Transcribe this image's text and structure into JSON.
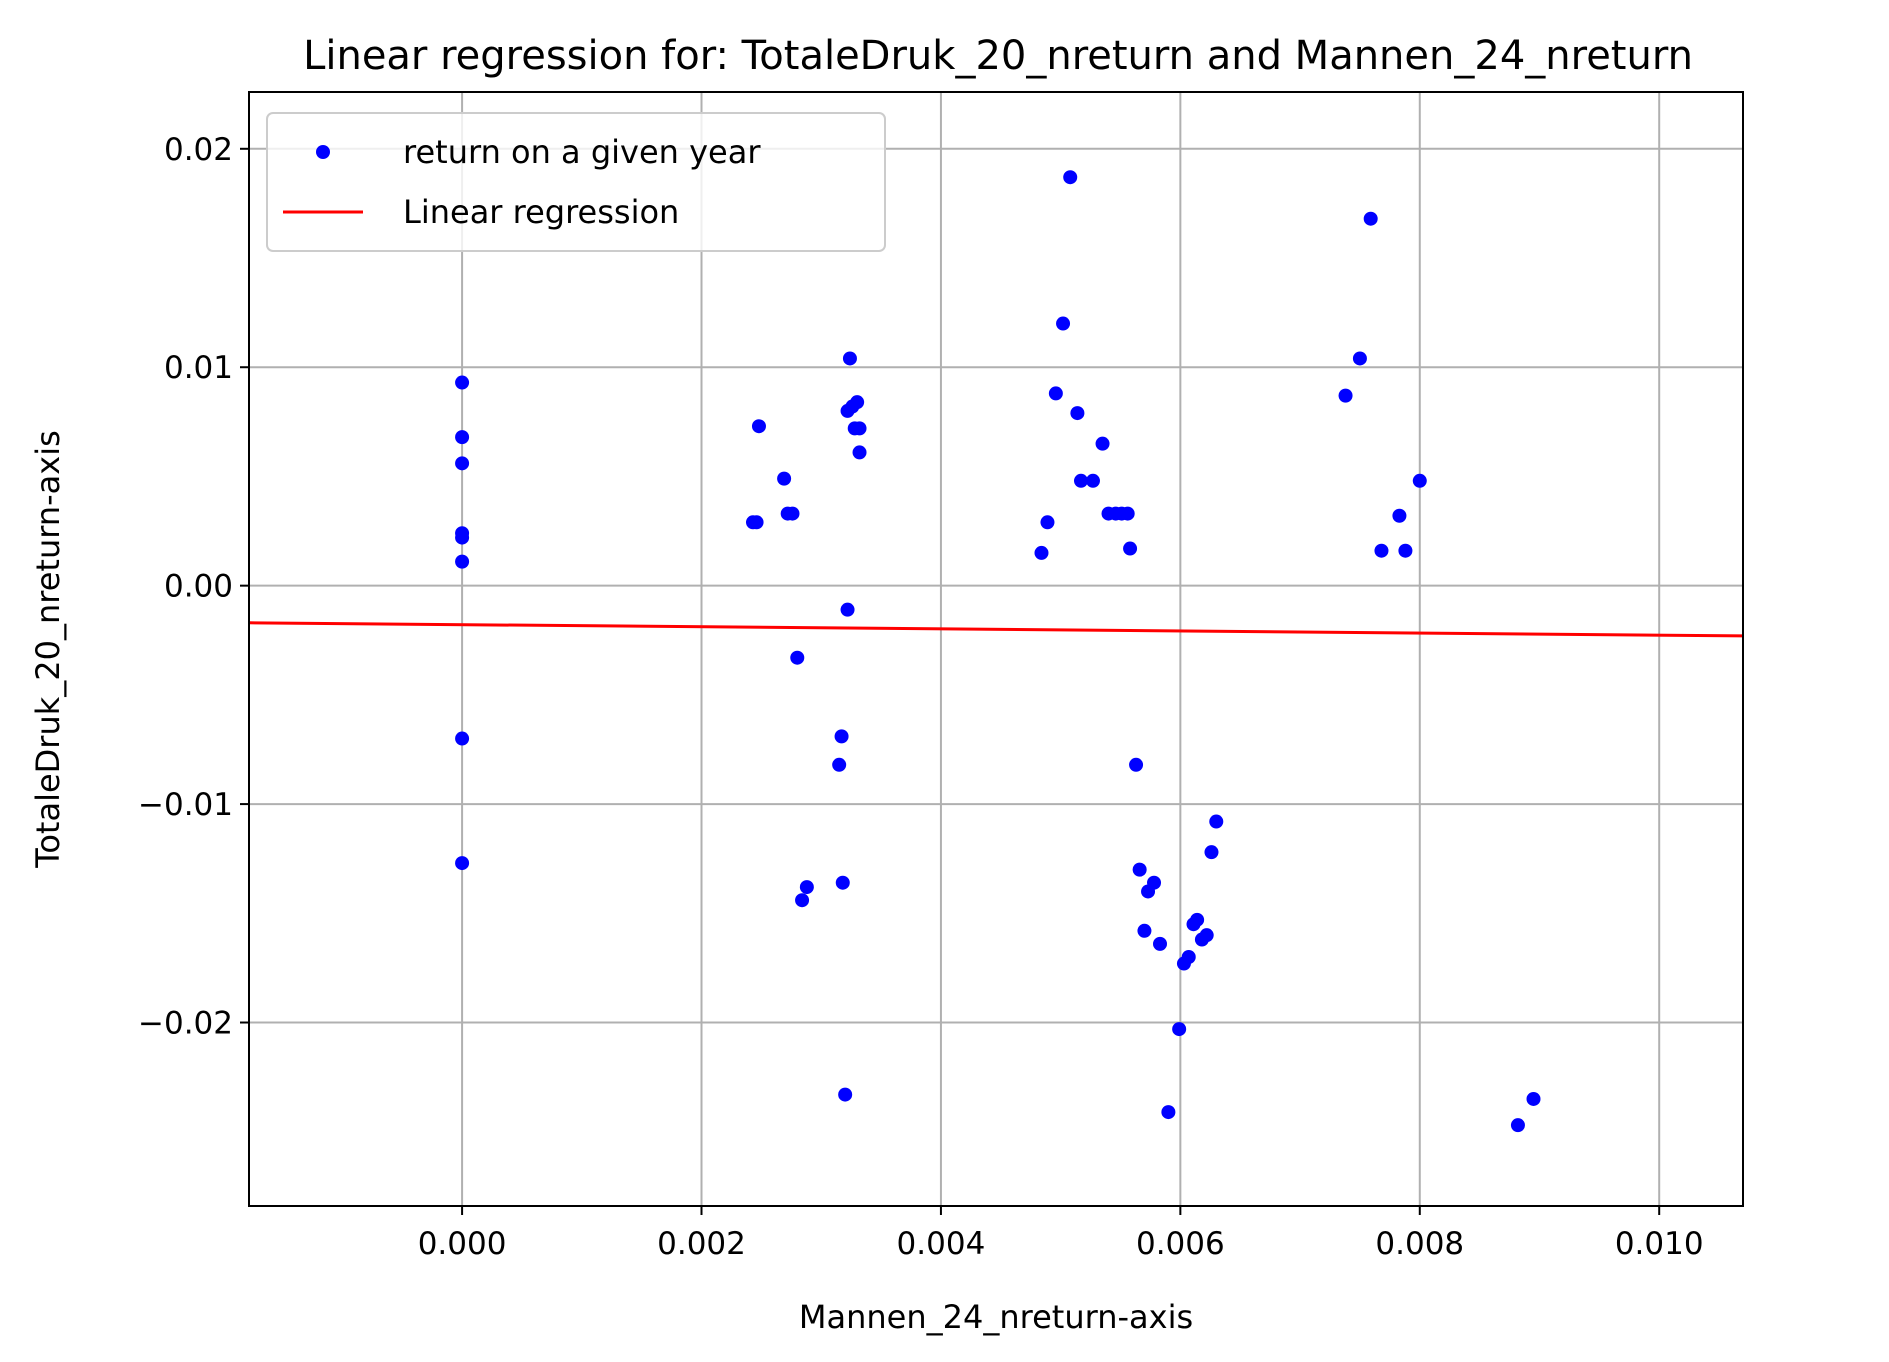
{
  "chart_data": {
    "type": "scatter",
    "title": "Linear regression for: TotaleDruk_20_nreturn and Mannen_24_nreturn",
    "xlabel": "Mannen_24_nreturn-axis",
    "ylabel": "TotaleDruk_20_nreturn-axis",
    "xlim": [
      -0.00178,
      0.0107
    ],
    "ylim": [
      -0.0284,
      0.0226
    ],
    "xticks": [
      0.0,
      0.002,
      0.004,
      0.006,
      0.008,
      0.01
    ],
    "xtick_labels": [
      "0.000",
      "0.002",
      "0.004",
      "0.006",
      "0.008",
      "0.010"
    ],
    "yticks": [
      -0.02,
      -0.01,
      0.0,
      0.01,
      0.02
    ],
    "ytick_labels": [
      "−0.02",
      "−0.01",
      "0.00",
      "0.01",
      "0.02"
    ],
    "grid": true,
    "legend_position": "top-left",
    "series": [
      {
        "name": "return on a given year",
        "kind": "scatter",
        "color": "#0000ff",
        "points": [
          [
            0.0,
            0.0093
          ],
          [
            0.0,
            0.0068
          ],
          [
            0.0,
            0.0056
          ],
          [
            0.0,
            0.0024
          ],
          [
            0.0,
            0.0022
          ],
          [
            0.0,
            0.0011
          ],
          [
            0.0,
            -0.007
          ],
          [
            0.0,
            -0.0127
          ],
          [
            0.00243,
            0.0029
          ],
          [
            0.00246,
            0.0029
          ],
          [
            0.00248,
            0.0073
          ],
          [
            0.00269,
            0.0049
          ],
          [
            0.00272,
            0.0033
          ],
          [
            0.00276,
            0.0033
          ],
          [
            0.0028,
            -0.0033
          ],
          [
            0.00284,
            -0.0144
          ],
          [
            0.00288,
            -0.0138
          ],
          [
            0.00315,
            -0.0082
          ],
          [
            0.00317,
            -0.0069
          ],
          [
            0.00318,
            -0.0136
          ],
          [
            0.0032,
            -0.0233
          ],
          [
            0.00322,
            -0.0011
          ],
          [
            0.00322,
            0.008
          ],
          [
            0.00324,
            0.0104
          ],
          [
            0.00326,
            0.0082
          ],
          [
            0.00328,
            0.0072
          ],
          [
            0.0033,
            0.0084
          ],
          [
            0.00332,
            0.0072
          ],
          [
            0.00332,
            0.0061
          ],
          [
            0.00484,
            0.0015
          ],
          [
            0.00489,
            0.0029
          ],
          [
            0.00496,
            0.0088
          ],
          [
            0.00502,
            0.012
          ],
          [
            0.00508,
            0.0187
          ],
          [
            0.00514,
            0.0079
          ],
          [
            0.00517,
            0.0048
          ],
          [
            0.00527,
            0.0048
          ],
          [
            0.00535,
            0.0065
          ],
          [
            0.0054,
            0.0033
          ],
          [
            0.00546,
            0.0033
          ],
          [
            0.00551,
            0.0033
          ],
          [
            0.00556,
            0.0033
          ],
          [
            0.00558,
            0.0017
          ],
          [
            0.00563,
            -0.0082
          ],
          [
            0.00566,
            -0.013
          ],
          [
            0.0057,
            -0.0158
          ],
          [
            0.00573,
            -0.014
          ],
          [
            0.00578,
            -0.0136
          ],
          [
            0.00583,
            -0.0164
          ],
          [
            0.0059,
            -0.0241
          ],
          [
            0.00599,
            -0.0203
          ],
          [
            0.00603,
            -0.0173
          ],
          [
            0.00607,
            -0.017
          ],
          [
            0.00611,
            -0.0155
          ],
          [
            0.00614,
            -0.0153
          ],
          [
            0.00618,
            -0.0162
          ],
          [
            0.00622,
            -0.016
          ],
          [
            0.00626,
            -0.0122
          ],
          [
            0.0063,
            -0.0108
          ],
          [
            0.00738,
            0.0087
          ],
          [
            0.0075,
            0.0104
          ],
          [
            0.00759,
            0.0168
          ],
          [
            0.00768,
            0.0016
          ],
          [
            0.00783,
            0.0032
          ],
          [
            0.00788,
            0.0016
          ],
          [
            0.008,
            0.0048
          ],
          [
            0.00882,
            -0.0247
          ],
          [
            0.00895,
            -0.0235
          ]
        ]
      },
      {
        "name": "Linear regression",
        "kind": "line",
        "color": "#ff0000",
        "points": [
          [
            -0.00178,
            -0.0017
          ],
          [
            0.0107,
            -0.0023
          ]
        ]
      }
    ]
  }
}
